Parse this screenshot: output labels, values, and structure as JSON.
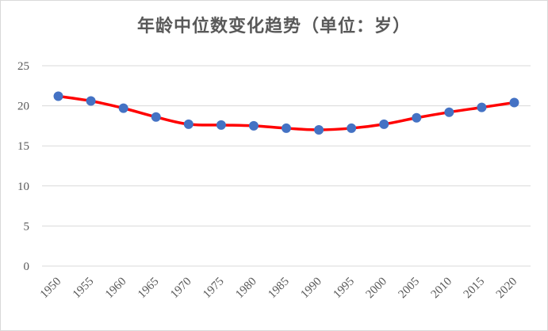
{
  "chart_data": {
    "type": "line",
    "title": "年龄中位数变化趋势（单位：岁）",
    "xlabel": "",
    "ylabel": "",
    "categories": [
      "1950",
      "1955",
      "1960",
      "1965",
      "1970",
      "1975",
      "1980",
      "1985",
      "1990",
      "1995",
      "2000",
      "2005",
      "2010",
      "2015",
      "2020"
    ],
    "series": [
      {
        "values": [
          21.2,
          20.6,
          19.7,
          18.6,
          17.7,
          17.6,
          17.5,
          17.2,
          17.0,
          17.2,
          17.7,
          18.5,
          19.2,
          19.8,
          20.4
        ]
      }
    ],
    "ylim": [
      0,
      25
    ],
    "yticks": [
      "0",
      "5",
      "10",
      "15",
      "20",
      "25"
    ],
    "grid": true,
    "legend": "none",
    "colors": {
      "line": "#ff0000",
      "marker": "#4472c4",
      "grid": "#d9d9d9",
      "text": "#595959"
    }
  }
}
